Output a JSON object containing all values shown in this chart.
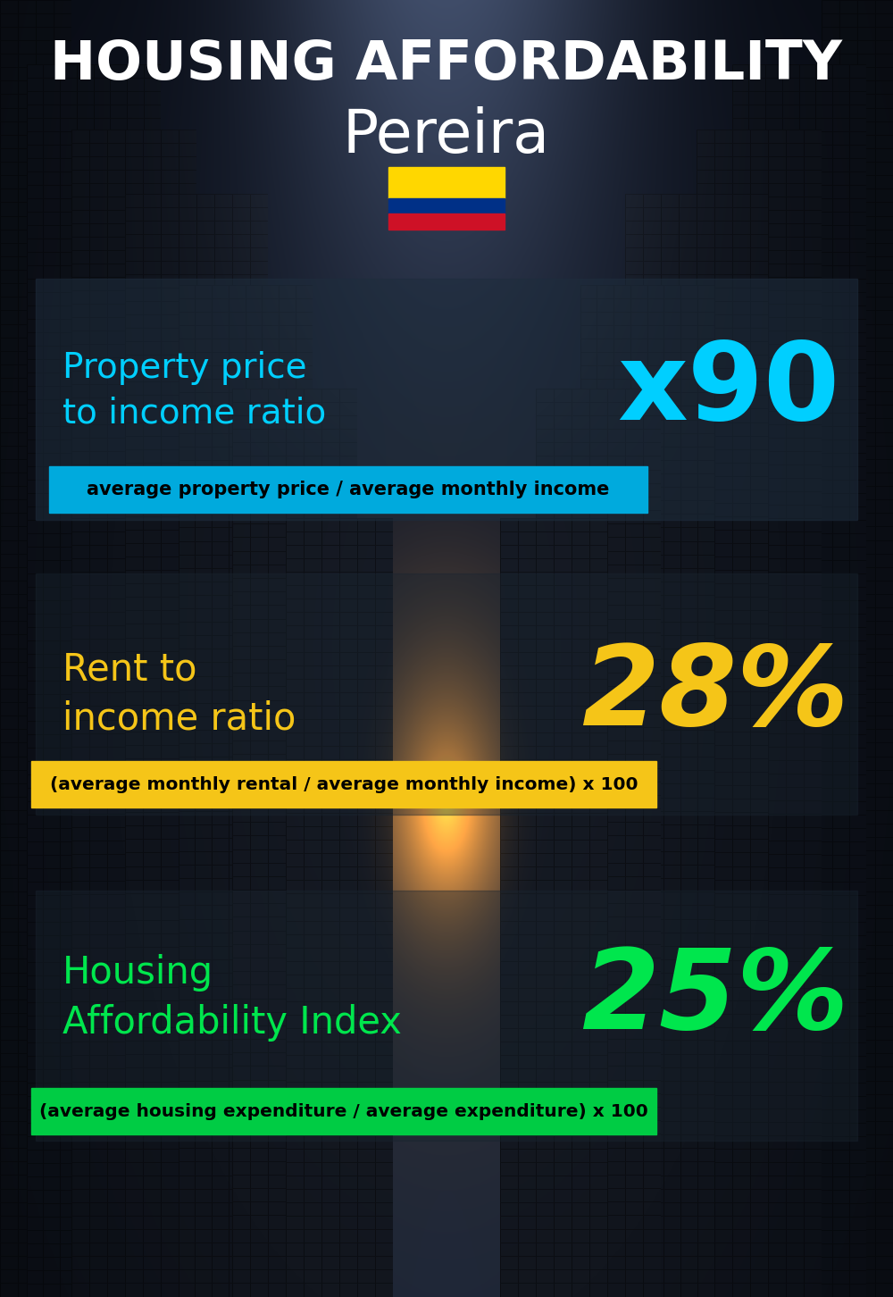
{
  "title_line1": "HOUSING AFFORDABILITY",
  "title_line2": "Pereira",
  "bg_color": "#0a0f1a",
  "section1_label": "Property price\nto income ratio",
  "section1_value": "x90",
  "section1_label_color": "#00cfff",
  "section1_value_color": "#00cfff",
  "section1_banner": "average property price / average monthly income",
  "section1_banner_bg": "#00aadd",
  "section2_label": "Rent to\nincome ratio",
  "section2_value": "28%",
  "section2_label_color": "#f5c518",
  "section2_value_color": "#f5c518",
  "section2_banner": "(average monthly rental / average monthly income) x 100",
  "section2_banner_bg": "#f5c518",
  "section3_label": "Housing\nAffordability Index",
  "section3_value": "25%",
  "section3_label_color": "#00e64d",
  "section3_value_color": "#00e64d",
  "section3_banner": "(average housing expenditure / average expenditure) x 100",
  "section3_banner_bg": "#00cc44",
  "flag_yellow": "#FFD700",
  "flag_blue": "#003087",
  "flag_red": "#CE1126"
}
